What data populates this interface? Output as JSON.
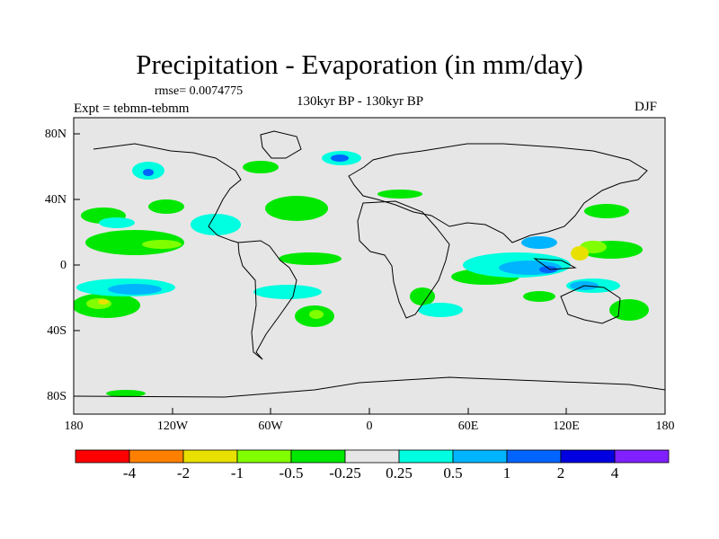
{
  "title": "Precipitation - Evaporation (in mm/day)",
  "rmse": "rmse= 0.0074775",
  "expt": "Expt = tebmn-tebmm",
  "period": "130kyr BP - 130kyr BP",
  "season": "DJF",
  "map": {
    "y_ticks": [
      "80N",
      "40N",
      "0",
      "40S",
      "80S"
    ],
    "x_ticks": [
      "180",
      "120W",
      "60W",
      "0",
      "60E",
      "120E",
      "180"
    ]
  },
  "colorbar": {
    "colors": [
      "#ff0000",
      "#ff8000",
      "#e8e000",
      "#80ff00",
      "#00e800",
      "#e6e6e6",
      "#00ffe0",
      "#00b4ff",
      "#0064ff",
      "#0000e0",
      "#8020ff"
    ],
    "labels": [
      "-4",
      "-2",
      "-1",
      "-0.5",
      "-0.25",
      "0.25",
      "0.5",
      "1",
      "2",
      "4"
    ]
  }
}
